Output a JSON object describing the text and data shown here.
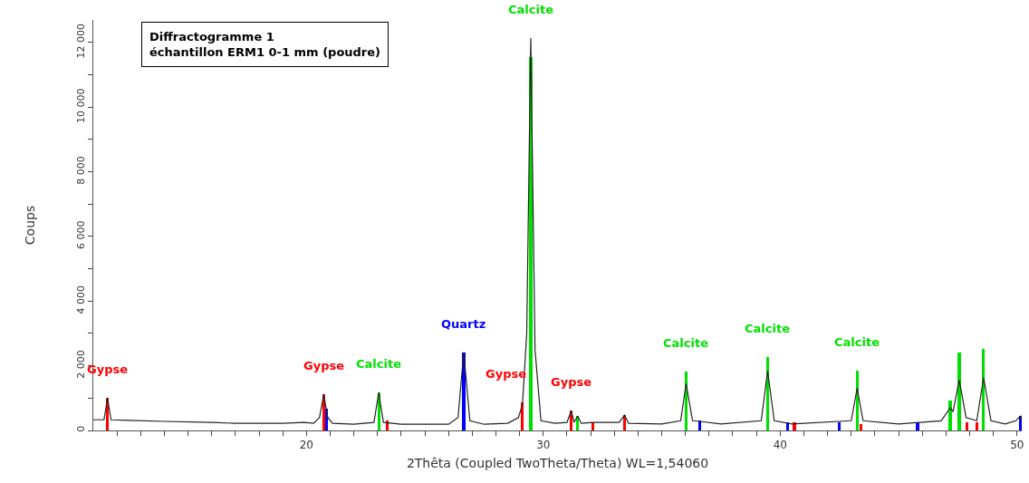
{
  "chart_data": {
    "type": "line",
    "title": "Diffractogramme 1",
    "subtitle": "échantillon ERM1 0-1 mm (poudre)",
    "xlabel": "2Thêta (Coupled TwoTheta/Theta) WL=1,54060",
    "ylabel": "Coups",
    "xlim": [
      11,
      50.2
    ],
    "ylim": [
      0,
      12700
    ],
    "xticks": [
      {
        "value": 12,
        "label": null
      },
      {
        "value": 13,
        "label": null
      },
      {
        "value": 14,
        "label": null
      },
      {
        "value": 15,
        "label": null
      },
      {
        "value": 16,
        "label": null
      },
      {
        "value": 17,
        "label": null
      },
      {
        "value": 18,
        "label": null
      },
      {
        "value": 19,
        "label": null
      },
      20,
      {
        "value": 21,
        "label": null
      },
      {
        "value": 22,
        "label": null
      },
      {
        "value": 23,
        "label": null
      },
      {
        "value": 24,
        "label": null
      },
      {
        "value": 25,
        "label": null
      },
      {
        "value": 26,
        "label": null
      },
      {
        "value": 27,
        "label": null
      },
      {
        "value": 28,
        "label": null
      },
      {
        "value": 29,
        "label": null
      },
      30,
      {
        "value": 31,
        "label": null
      },
      {
        "value": 32,
        "label": null
      },
      {
        "value": 33,
        "label": null
      },
      {
        "value": 34,
        "label": null
      },
      {
        "value": 35,
        "label": null
      },
      {
        "value": 36,
        "label": null
      },
      {
        "value": 37,
        "label": null
      },
      {
        "value": 38,
        "label": null
      },
      {
        "value": 39,
        "label": null
      },
      40,
      {
        "value": 41,
        "label": null
      },
      {
        "value": 42,
        "label": null
      },
      {
        "value": 43,
        "label": null
      },
      {
        "value": 44,
        "label": null
      },
      {
        "value": 45,
        "label": null
      },
      {
        "value": 46,
        "label": null
      },
      {
        "value": 47,
        "label": null
      },
      {
        "value": 48,
        "label": null
      },
      {
        "value": 49,
        "label": null
      },
      50
    ],
    "yticks": [
      0,
      {
        "value": 1000,
        "label": null
      },
      {
        "value": 2000,
        "label": "2 000"
      },
      {
        "value": 3000,
        "label": null
      },
      {
        "value": 4000,
        "label": "4 000"
      },
      {
        "value": 5000,
        "label": null
      },
      {
        "value": 6000,
        "label": "6 000"
      },
      {
        "value": 7000,
        "label": null
      },
      {
        "value": 8000,
        "label": "8 000"
      },
      {
        "value": 9000,
        "label": null
      },
      {
        "value": 10000,
        "label": "10 000"
      },
      {
        "value": 11000,
        "label": null
      },
      {
        "value": 12000,
        "label": "12 000"
      }
    ],
    "series": [
      {
        "type": "bar",
        "color": "#ff0000",
        "x": [
          11.6,
          20.73,
          23.4,
          29.12,
          31.18,
          32.1,
          33.43,
          40.6,
          43.4,
          47.9,
          48.3
        ],
        "values": [
          1000,
          1110,
          300,
          860,
          610,
          250,
          470,
          250,
          200,
          250,
          250
        ]
      },
      {
        "type": "bar",
        "color": "#0000ff",
        "x": [
          20.85,
          26.64,
          36.6,
          40.3,
          42.5,
          45.8,
          50.15
        ],
        "values": [
          670,
          2420,
          300,
          250,
          250,
          250,
          450
        ]
      },
      {
        "type": "bar",
        "color": "#00e000",
        "x": [
          23.05,
          29.47,
          31.45,
          36.03,
          39.47,
          43.25,
          47.18,
          47.56,
          48.59
        ],
        "values": [
          1170,
          11560,
          450,
          1810,
          2280,
          1840,
          920,
          2420,
          2510
        ]
      },
      {
        "color": "#222222",
        "x": [
          11.0,
          11.45,
          11.6,
          11.75,
          12.5,
          14,
          16,
          17,
          19,
          19.9,
          20.3,
          20.55,
          20.73,
          20.9,
          21.1,
          22,
          22.85,
          23.05,
          23.25,
          24,
          26.0,
          26.4,
          26.64,
          26.9,
          27.5,
          28.5,
          28.95,
          29.12,
          29.3,
          29.47,
          29.65,
          29.9,
          30.5,
          31.0,
          31.18,
          31.3,
          31.45,
          31.6,
          32.1,
          33.2,
          33.43,
          33.6,
          35.0,
          35.8,
          36.03,
          36.3,
          36.6,
          37.5,
          39.2,
          39.47,
          39.75,
          40.5,
          43.0,
          43.25,
          43.5,
          45,
          46.8,
          47.18,
          47.3,
          47.56,
          47.85,
          48.3,
          48.59,
          48.9,
          49.5,
          49.95,
          50.15,
          50.2
        ],
        "values": [
          330,
          330,
          1000,
          330,
          310,
          280,
          250,
          220,
          220,
          250,
          220,
          400,
          1110,
          400,
          220,
          190,
          250,
          1170,
          250,
          190,
          190,
          400,
          2420,
          300,
          190,
          220,
          400,
          810,
          3000,
          12140,
          2500,
          300,
          220,
          250,
          610,
          250,
          450,
          220,
          250,
          250,
          470,
          220,
          200,
          300,
          1450,
          300,
          280,
          200,
          300,
          1840,
          300,
          200,
          300,
          1310,
          300,
          200,
          300,
          700,
          580,
          1560,
          400,
          300,
          1640,
          300,
          200,
          300,
          450,
          300
        ]
      }
    ],
    "annotations": [
      {
        "text": "Gypse",
        "x": 11.6,
        "y": 1000
      },
      {
        "text": "Gypse",
        "x": 20.73,
        "y": 1110
      },
      {
        "text": "Calcite",
        "x": 23.05,
        "y": 1170
      },
      {
        "text": "Quartz",
        "x": 26.64,
        "y": 2420
      },
      {
        "text": "Gypse",
        "x": 29.12,
        "y": 860
      },
      {
        "text": "Calcite",
        "x": 29.47,
        "y": 12140
      },
      {
        "text": "Gypse",
        "x": 31.18,
        "y": 610
      },
      {
        "text": "Calcite",
        "x": 36.03,
        "y": 1810
      },
      {
        "text": "Calcite",
        "x": 39.47,
        "y": 2280
      },
      {
        "text": "Calcite",
        "x": 43.25,
        "y": 1840
      }
    ]
  }
}
